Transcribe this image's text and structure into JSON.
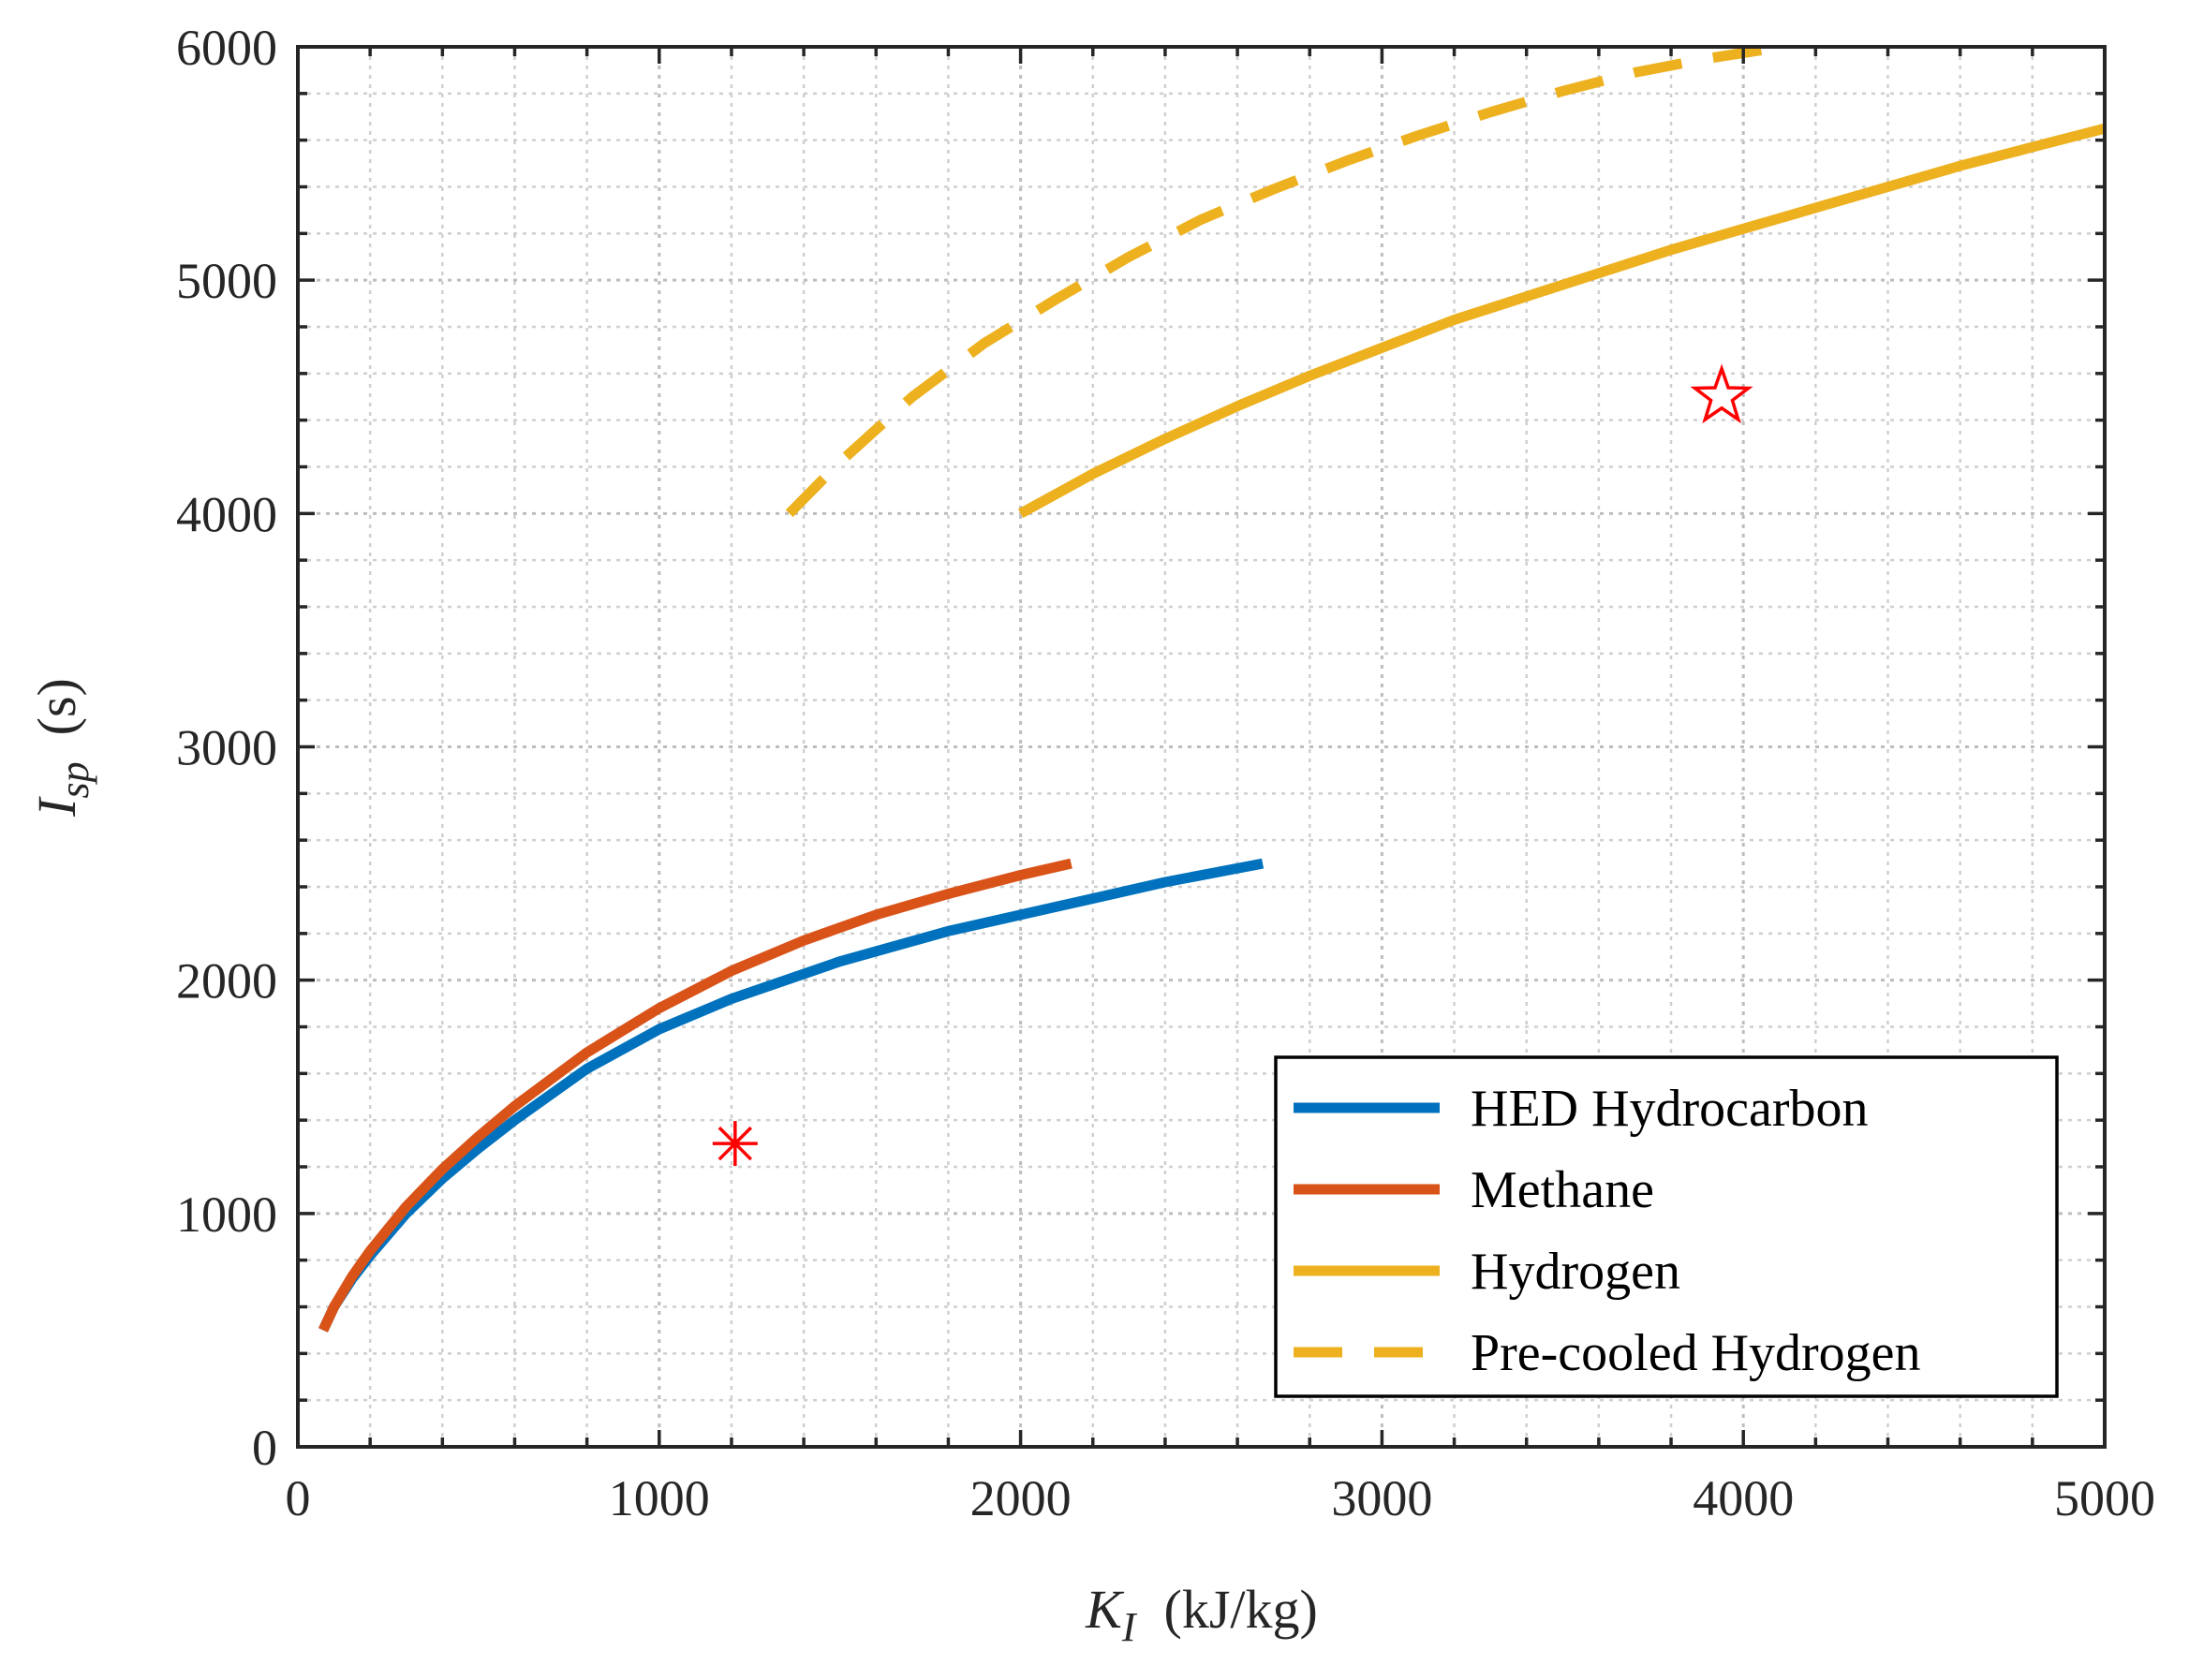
{
  "chart_data": {
    "type": "line",
    "xlabel": {
      "symbol": "K",
      "subscript": "I",
      "unit": "(kJ/kg)"
    },
    "ylabel": {
      "symbol": "I",
      "subscript": "sp",
      "unit": "(s)"
    },
    "xlim": [
      0,
      5000
    ],
    "ylim": [
      0,
      6000
    ],
    "xticks": [
      0,
      1000,
      2000,
      3000,
      4000,
      5000
    ],
    "yticks": [
      0,
      1000,
      2000,
      3000,
      4000,
      5000,
      6000
    ],
    "x_minor_step": 200,
    "y_minor_step": 200,
    "grid": "on (major and minor, dotted)",
    "legend_position": "bottom-right",
    "series": [
      {
        "name": "HED Hydrocarbon",
        "color": "#0072BD",
        "style": "solid",
        "x": [
          70,
          100,
          150,
          200,
          300,
          400,
          500,
          600,
          800,
          1000,
          1200,
          1500,
          1800,
          2000,
          2200,
          2400,
          2670
        ],
        "y": [
          500,
          600,
          720,
          820,
          1000,
          1150,
          1280,
          1400,
          1620,
          1790,
          1920,
          2080,
          2210,
          2280,
          2350,
          2420,
          2500
        ]
      },
      {
        "name": "Methane",
        "color": "#D95319",
        "style": "solid",
        "x": [
          70,
          100,
          150,
          200,
          300,
          400,
          500,
          600,
          800,
          1000,
          1200,
          1400,
          1600,
          1800,
          2000,
          2140
        ],
        "y": [
          500,
          600,
          730,
          840,
          1030,
          1190,
          1330,
          1460,
          1690,
          1880,
          2040,
          2170,
          2280,
          2370,
          2450,
          2500
        ]
      },
      {
        "name": "Hydrogen",
        "color": "#EDB120",
        "style": "solid",
        "x": [
          2000,
          2200,
          2400,
          2600,
          2800,
          3000,
          3200,
          3400,
          3600,
          3800,
          4000,
          4200,
          4400,
          4600,
          4800,
          5000
        ],
        "y": [
          4000,
          4170,
          4320,
          4460,
          4590,
          4710,
          4830,
          4930,
          5030,
          5130,
          5220,
          5310,
          5400,
          5490,
          5570,
          5650
        ]
      },
      {
        "name": "Pre-cooled Hydrogen",
        "color": "#EDB120",
        "style": "dashed",
        "x": [
          1360,
          1500,
          1700,
          1900,
          2100,
          2300,
          2500,
          2700,
          2900,
          3100,
          3300,
          3500,
          3700,
          3900,
          4110
        ],
        "y": [
          4000,
          4220,
          4500,
          4730,
          4920,
          5100,
          5260,
          5390,
          5510,
          5620,
          5720,
          5810,
          5890,
          5950,
          6000
        ]
      }
    ],
    "markers": [
      {
        "name": "asterisk-point",
        "shape": "asterisk",
        "x": 1210,
        "y": 1300,
        "color": "#FF0000"
      },
      {
        "name": "star-point",
        "shape": "pentagram",
        "x": 3940,
        "y": 4500,
        "color": "#FF0000"
      }
    ]
  }
}
